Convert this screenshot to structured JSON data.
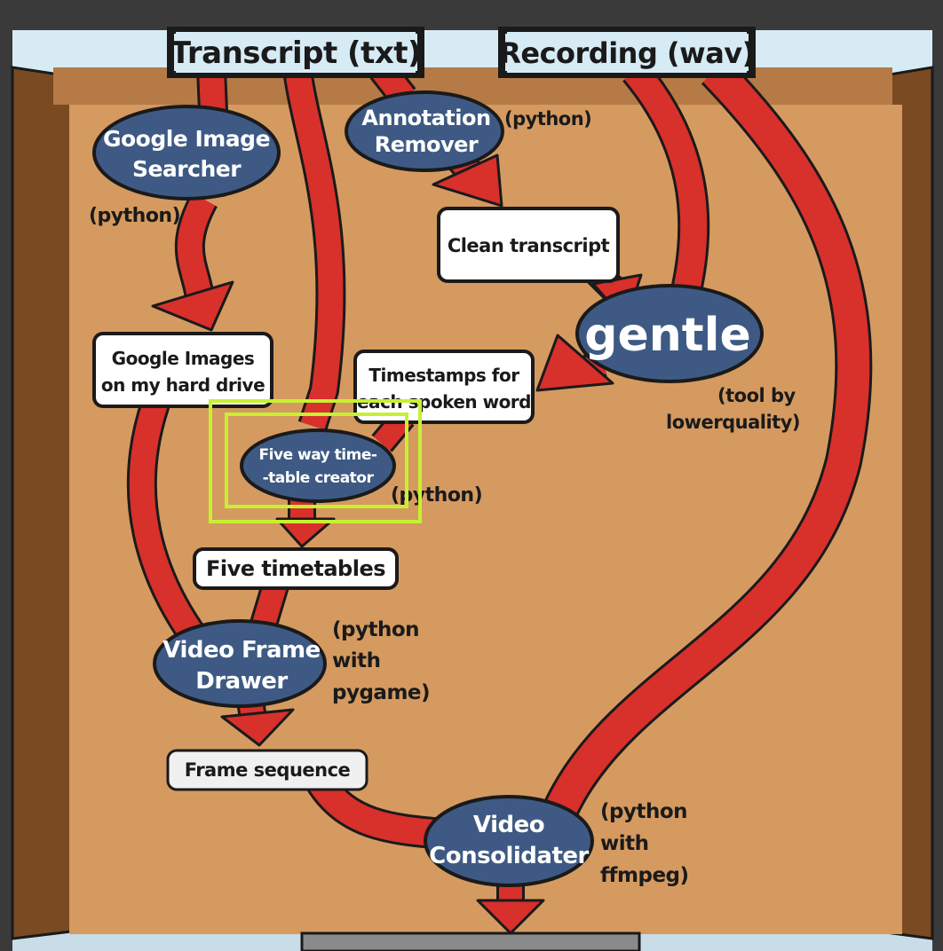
{
  "inputs": {
    "transcript": "Transcript (txt)",
    "recording": "Recording (wav)"
  },
  "nodes": {
    "google_image_searcher": {
      "line1": "Google Image",
      "line2": "Searcher",
      "note": "(python)"
    },
    "annotation_remover": {
      "line1": "Annotation",
      "line2": "Remover",
      "note": "(python)"
    },
    "clean_transcript": {
      "label": "Clean transcript"
    },
    "gentle": {
      "label": "gentle",
      "note1": "(tool by",
      "note2": "lowerquality)"
    },
    "google_images_drive": {
      "line1": "Google Images",
      "line2": "on my hard drive"
    },
    "timestamps": {
      "line1": "Timestamps for",
      "line2": "each spoken word"
    },
    "five_way": {
      "line1": "Five way time-",
      "line2": "-table creator",
      "note": "(python)"
    },
    "five_timetables": {
      "label": "Five timetables"
    },
    "video_frame_drawer": {
      "line1": "Video Frame",
      "line2": "Drawer",
      "note1": "(python",
      "note2": "with",
      "note3": "pygame)"
    },
    "frame_sequence": {
      "label": "Frame sequence"
    },
    "video_consolidater": {
      "line1": "Video",
      "line2": "Consolidater",
      "note1": "(python",
      "note2": "with",
      "note3": "ffmpeg)"
    }
  },
  "colors": {
    "board": "#d59a60",
    "board_dark": "#b57a45",
    "wood": "#7a4a22",
    "sky": "#d7ebf5",
    "arrow": "#d8302b",
    "ellipse": "#3e5a84",
    "highlight": "#c8f032"
  }
}
